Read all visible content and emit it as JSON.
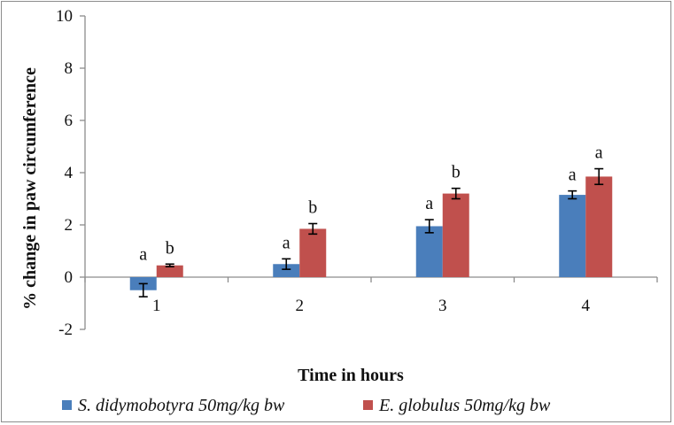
{
  "chart_data": {
    "type": "bar",
    "categories": [
      "1",
      "2",
      "3",
      "4"
    ],
    "xlabel": "Time in hours",
    "ylabel": "% change in paw circumference",
    "ylim": [
      -2,
      10
    ],
    "yticks": [
      10,
      8,
      6,
      4,
      2,
      0,
      -2
    ],
    "grid": false,
    "legend": "bottom",
    "series": [
      {
        "name": "S. didymobotyra 50mg/kg bw",
        "color": "#4a7ebb",
        "values": [
          -0.5,
          0.5,
          1.95,
          3.15
        ],
        "errors": [
          0.25,
          0.2,
          0.25,
          0.15
        ],
        "labels": [
          "a",
          "a",
          "a",
          "a"
        ]
      },
      {
        "name": "E. globulus 50mg/kg bw",
        "color": "#c0504d",
        "values": [
          0.45,
          1.85,
          3.2,
          3.85
        ],
        "errors": [
          0.05,
          0.2,
          0.2,
          0.3
        ],
        "labels": [
          "b",
          "b",
          "b",
          "a"
        ]
      }
    ]
  }
}
